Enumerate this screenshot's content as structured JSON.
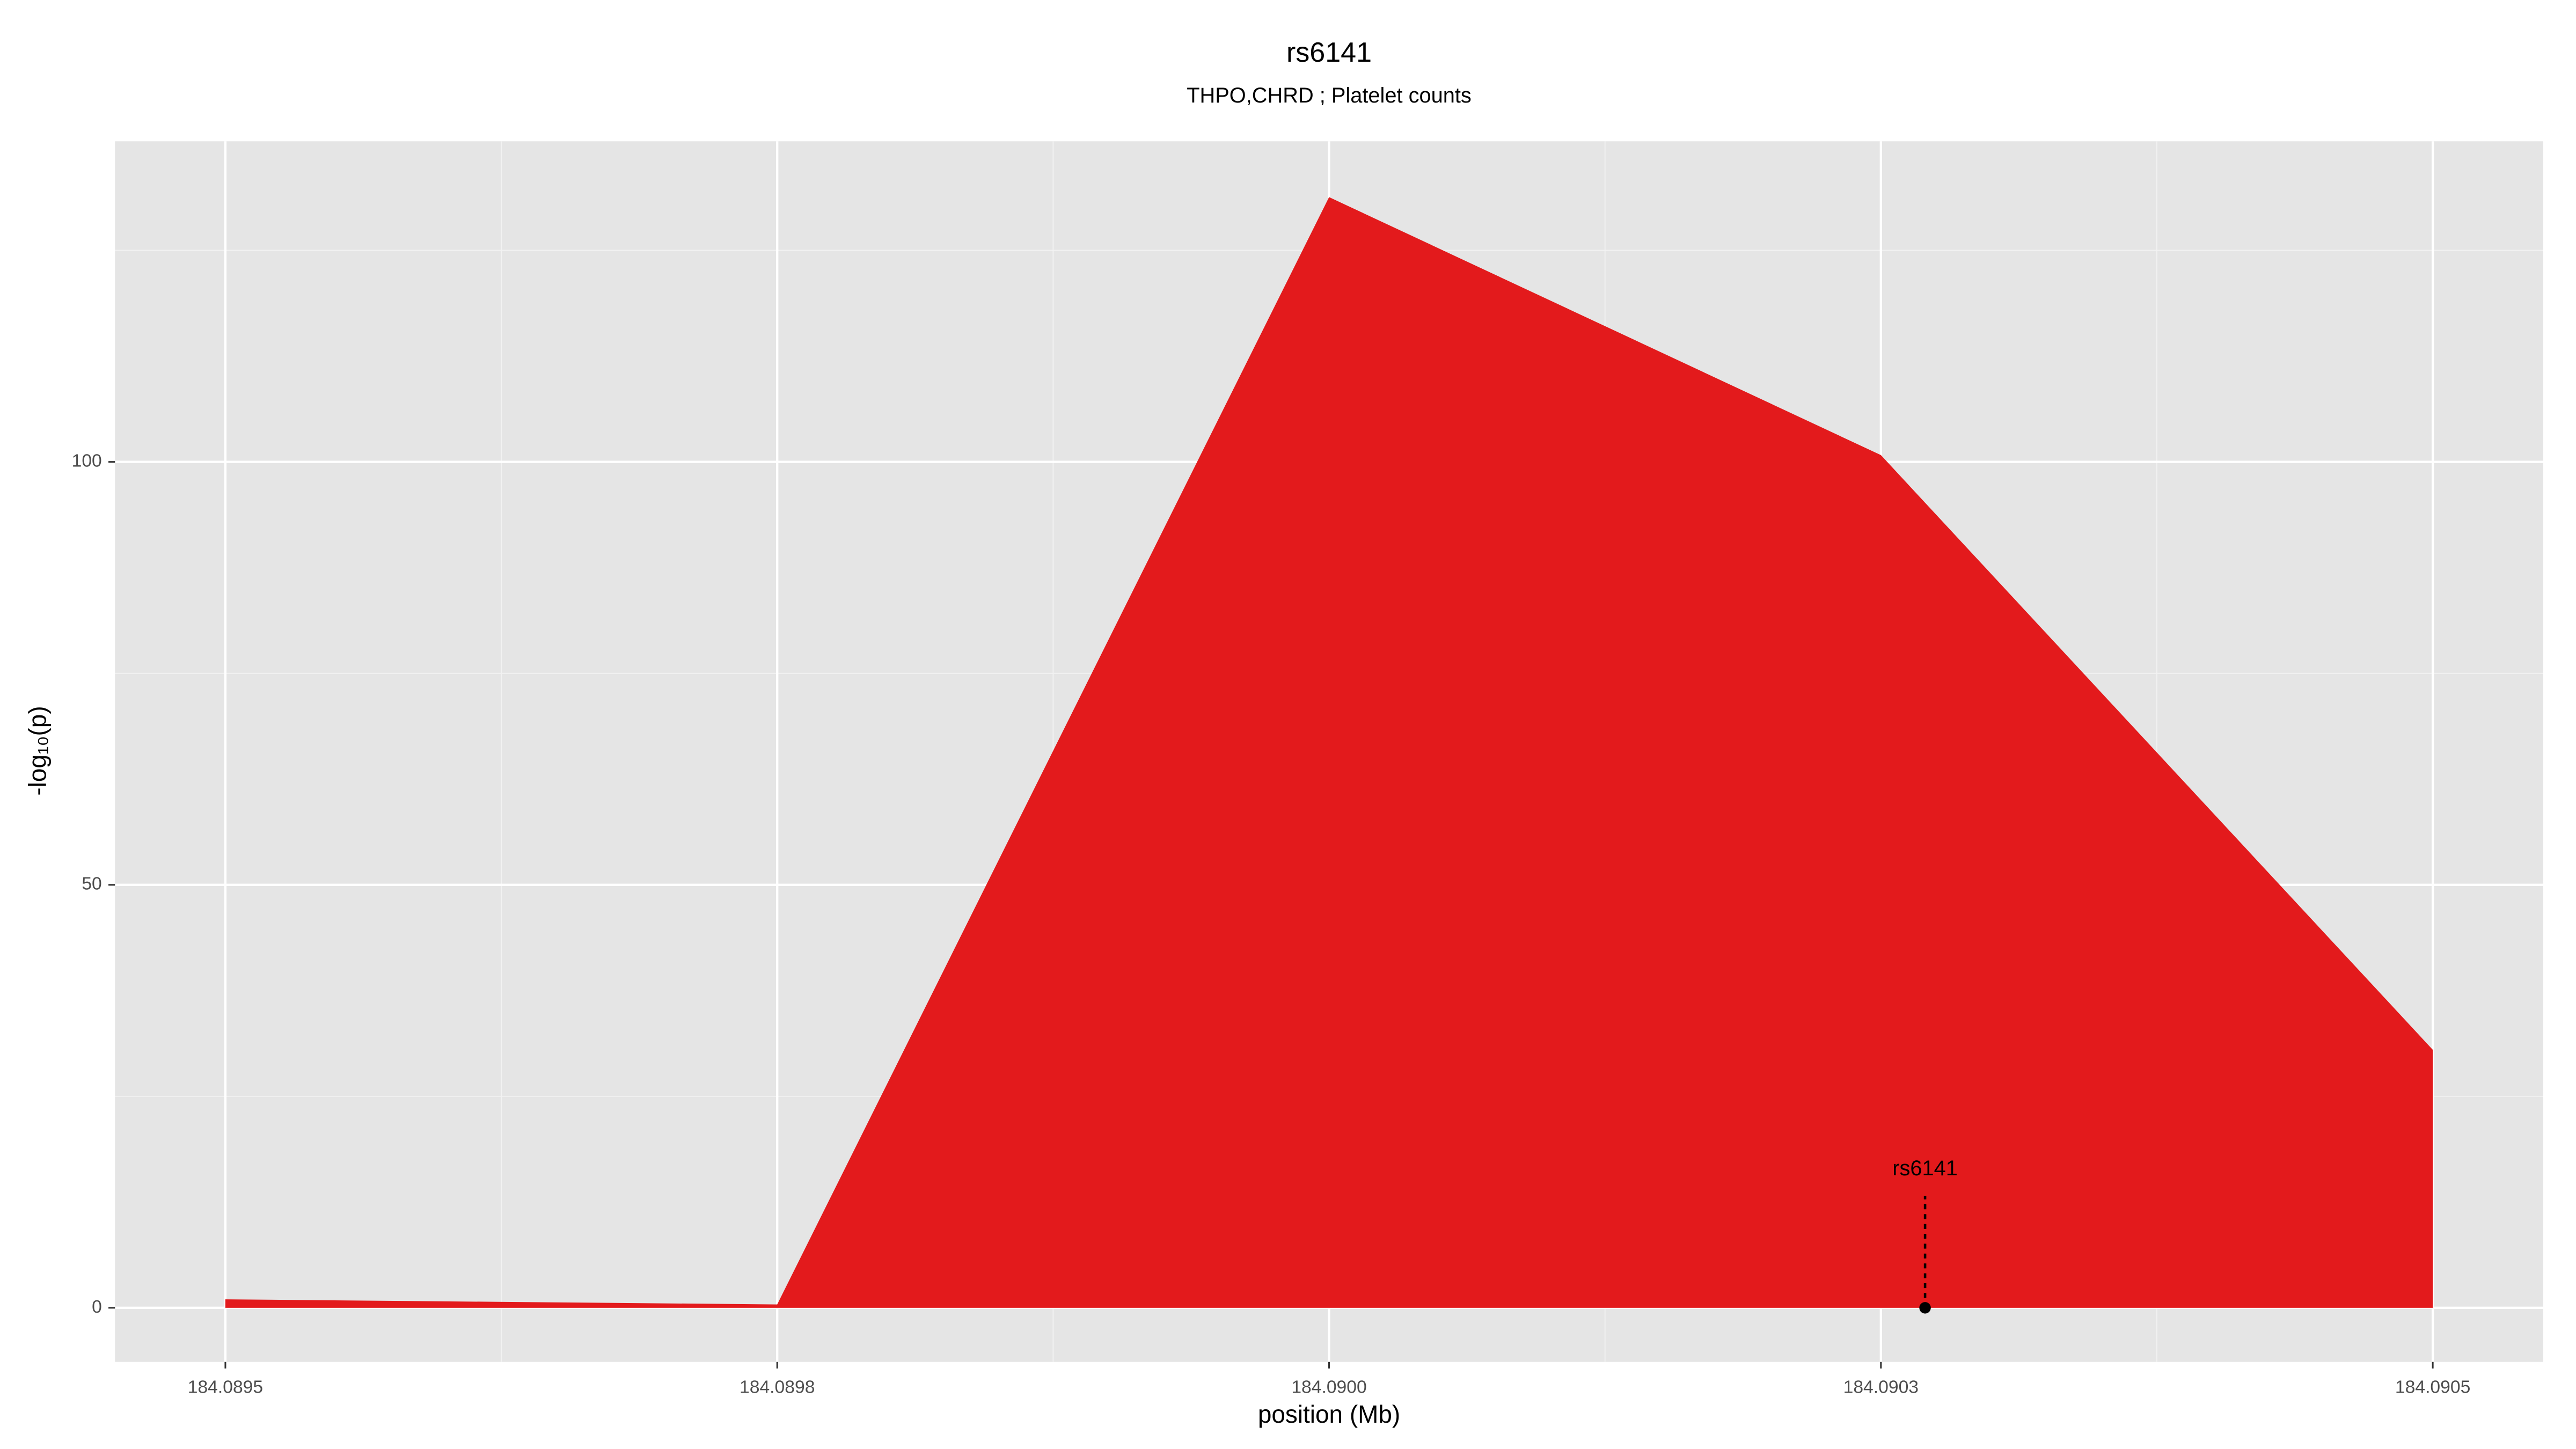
{
  "chart_data": {
    "type": "area",
    "title": "rs6141",
    "subtitle": "THPO,CHRD ; Platelet counts",
    "x_label": "position (Mb)",
    "y_label": "-log₁₀(p)",
    "x": [
      184.0895,
      184.08975,
      184.09,
      184.09025,
      184.0905
    ],
    "values": [
      1.0,
      0.4,
      131.3,
      100.8,
      30.5
    ],
    "color": "#e31a1c",
    "xlim": [
      184.08945,
      184.09055
    ],
    "ylim": [
      -6.4,
      137.9
    ],
    "xticks": [
      184.0895,
      {
        "value": 184.08975,
        "label": "184.0898"
      },
      {
        "value": 184.09,
        "label": "184.0900"
      },
      {
        "value": 184.09025,
        "label": "184.0903"
      },
      184.0905
    ],
    "yticks": [
      0,
      50,
      100
    ],
    "grid": true,
    "annotation": {
      "label": "rs6141",
      "x": 184.09027,
      "y": 0
    }
  }
}
